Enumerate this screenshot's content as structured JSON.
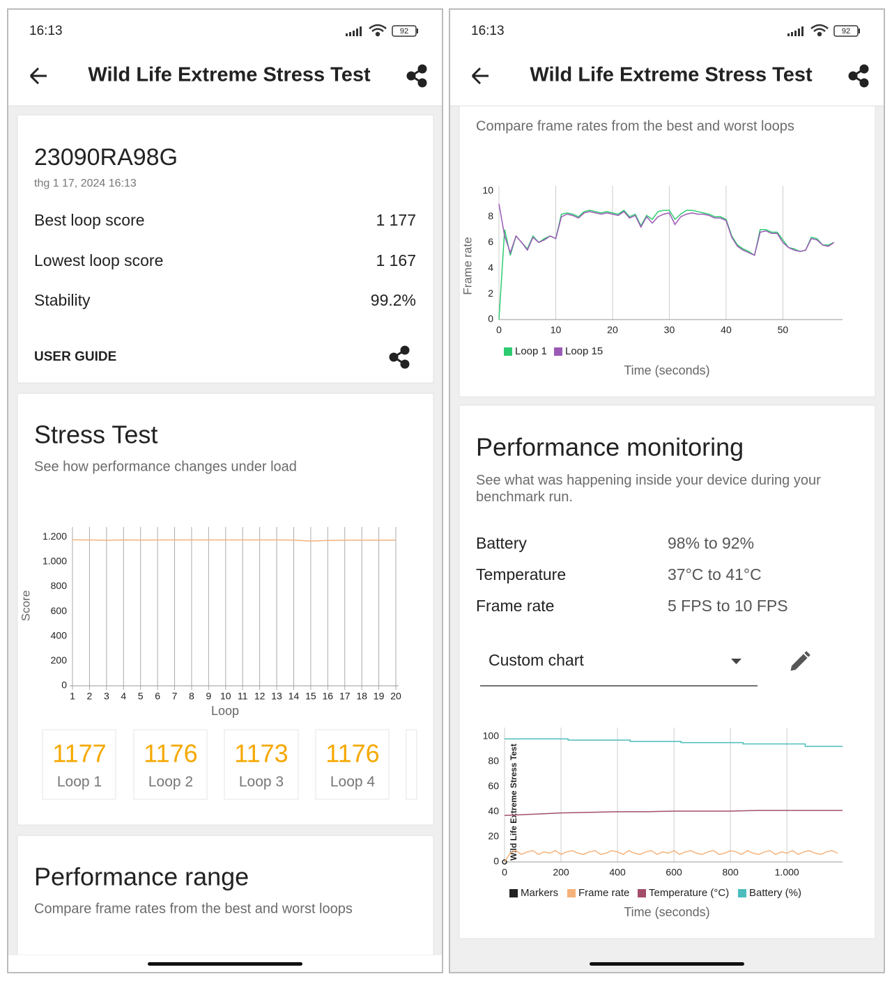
{
  "left": {
    "status": {
      "time": "16:13",
      "battery": "92"
    },
    "header": {
      "title": "Wild Life Extreme Stress Test"
    },
    "summary": {
      "device": "23090RA98G",
      "date": "thg 1 17, 2024 16:13",
      "rows": [
        {
          "label": "Best loop score",
          "value": "1 177"
        },
        {
          "label": "Lowest loop score",
          "value": "1 167"
        },
        {
          "label": "Stability",
          "value": "99.2%"
        }
      ],
      "link": "USER GUIDE"
    },
    "stress": {
      "title": "Stress Test",
      "subtitle": "See how performance changes under load",
      "chart_data": {
        "type": "line",
        "ylabel": "Score",
        "xlabel": "Loop",
        "categories": [
          "1",
          "2",
          "3",
          "4",
          "5",
          "6",
          "7",
          "8",
          "9",
          "10",
          "11",
          "12",
          "13",
          "14",
          "15",
          "16",
          "17",
          "18",
          "19",
          "20"
        ],
        "series": [
          {
            "color": "#f2b27c",
            "values": [
              1177,
              1176,
              1173,
              1176,
              1175,
              1176,
              1176,
              1176,
              1176,
              1176,
              1176,
              1176,
              1176,
              1175,
              1167,
              1172,
              1174,
              1174,
              1174,
              1174
            ]
          }
        ],
        "ylim": [
          0,
          1280
        ],
        "yticks": [
          0,
          200,
          400,
          600,
          800,
          {
            "value": 1000,
            "label": "1.000"
          },
          {
            "value": 1200,
            "label": "1.200"
          }
        ]
      },
      "loops": [
        {
          "score": "1177",
          "label": "Loop 1"
        },
        {
          "score": "1176",
          "label": "Loop 2"
        },
        {
          "score": "1173",
          "label": "Loop 3"
        },
        {
          "score": "1176",
          "label": "Loop 4"
        }
      ]
    },
    "range": {
      "title": "Performance range",
      "subtitle": "Compare frame rates from the best and worst loops"
    }
  },
  "right": {
    "status": {
      "time": "16:13",
      "battery": "92"
    },
    "header": {
      "title": "Wild Life Extreme Stress Test"
    },
    "range": {
      "subtitle": "Compare frame rates from the best and worst loops",
      "chart_data": {
        "type": "line",
        "ylabel": "Frame rate",
        "xlabel": "Time (seconds)",
        "x": [
          0,
          1,
          2,
          3,
          4,
          5,
          6,
          7,
          8,
          9,
          10,
          11,
          12,
          13,
          14,
          15,
          16,
          17,
          18,
          19,
          20,
          21,
          22,
          23,
          24,
          25,
          26,
          27,
          28,
          29,
          30,
          31,
          32,
          33,
          34,
          35,
          36,
          37,
          38,
          39,
          40,
          41,
          42,
          43,
          44,
          45,
          46,
          47,
          48,
          49,
          50,
          51,
          52,
          53,
          54,
          55,
          56,
          57,
          58,
          59
        ],
        "series": [
          {
            "name": "Loop 1",
            "color": "#2ecc71",
            "values": [
              0,
              7,
              5,
              6.5,
              6,
              5.5,
              6.5,
              6,
              6.3,
              6.5,
              6.3,
              8.2,
              8.3,
              8.2,
              8,
              8.4,
              8.5,
              8.4,
              8.3,
              8.4,
              8.3,
              8.2,
              8.5,
              8,
              8.2,
              7.3,
              8.1,
              7.8,
              8.4,
              8.5,
              8.5,
              7.8,
              8.2,
              8.5,
              8.5,
              8.4,
              8.3,
              8.2,
              8,
              8,
              7.8,
              6.5,
              5.8,
              5.5,
              5.3,
              5,
              7,
              7,
              6.8,
              6.8,
              6.2,
              5.6,
              5.5,
              5.3,
              5.4,
              6.4,
              6.3,
              5.8,
              5.8,
              6
            ]
          },
          {
            "name": "Loop 15",
            "color": "#9b59b6",
            "values": [
              9,
              6.5,
              5.2,
              6.5,
              6,
              5.4,
              6.4,
              6,
              6.2,
              6.5,
              6.3,
              8,
              8.2,
              8.1,
              7.9,
              8.3,
              8.4,
              8.3,
              8.2,
              8.3,
              8.2,
              8.1,
              8.4,
              7.9,
              8.1,
              7.2,
              8,
              7.5,
              8,
              8.2,
              8.3,
              7.4,
              8,
              8.2,
              8.3,
              8.2,
              8.2,
              8.1,
              7.9,
              7.9,
              7.7,
              6.4,
              5.7,
              5.4,
              5.2,
              5,
              6.8,
              6.9,
              6.7,
              6.7,
              6,
              5.6,
              5.4,
              5.3,
              5.4,
              6.3,
              6.2,
              5.8,
              5.7,
              6
            ]
          }
        ],
        "xlim": [
          0,
          60.5
        ],
        "xticks": [
          0,
          10,
          20,
          30,
          40,
          50
        ],
        "ylim": [
          0,
          10.4
        ],
        "yticks": [
          0,
          2,
          4,
          6,
          8,
          10
        ]
      }
    },
    "monitoring": {
      "title": "Performance monitoring",
      "subtitle": "See what was happening inside your device during your benchmark run.",
      "rows": [
        {
          "label": "Battery",
          "value": "98% to 92%"
        },
        {
          "label": "Temperature",
          "value": "37°C to 41°C"
        },
        {
          "label": "Frame rate",
          "value": "5 FPS to 10 FPS"
        }
      ],
      "dropdown": "Custom chart",
      "chart_data": {
        "type": "line",
        "xlabel": "Time (seconds)",
        "series": [
          {
            "name": "Markers",
            "color": "#222222",
            "x": [
              0
            ],
            "values": [
              0
            ],
            "label": "Wild Life Extreme Stress Test"
          },
          {
            "name": "Frame rate",
            "color": "#f5b27a",
            "x": [
              0,
              20,
              40,
              60,
              80,
              100,
              120,
              140,
              160,
              180,
              200,
              220,
              240,
              260,
              280,
              300,
              320,
              340,
              360,
              380,
              400,
              420,
              440,
              460,
              480,
              500,
              520,
              540,
              560,
              580,
              600,
              620,
              640,
              660,
              680,
              700,
              720,
              740,
              760,
              780,
              800,
              820,
              840,
              860,
              880,
              900,
              920,
              940,
              960,
              980,
              1000,
              1020,
              1040,
              1060,
              1080,
              1100,
              1120,
              1140,
              1160,
              1180
            ],
            "values": [
              0,
              7,
              9,
              6,
              8,
              9,
              6,
              8,
              7,
              9,
              6,
              8,
              9,
              7,
              6,
              8,
              9,
              6,
              7,
              9,
              8,
              6,
              9,
              7,
              6,
              8,
              9,
              6,
              8,
              7,
              9,
              6,
              8,
              9,
              7,
              6,
              8,
              9,
              6,
              7,
              9,
              8,
              6,
              9,
              7,
              6,
              8,
              9,
              6,
              8,
              7,
              9,
              6,
              8,
              9,
              7,
              6,
              8,
              9,
              7
            ]
          },
          {
            "name": "Temperature (°C)",
            "color": "#a34e6a",
            "x": [
              0,
              50,
              100,
              200,
              300,
              400,
              500,
              600,
              700,
              800,
              900,
              1000,
              1100,
              1197
            ],
            "values": [
              37,
              37.5,
              38,
              39,
              39.5,
              40,
              40,
              40.5,
              40.5,
              40.5,
              41,
              41,
              41,
              41
            ]
          },
          {
            "name": "Battery (%)",
            "color": "#4cbcbc",
            "x": [
              0,
              225,
              225,
              445,
              445,
              625,
              625,
              845,
              845,
              1065,
              1065,
              1197
            ],
            "values": [
              98,
              98,
              97,
              97,
              96,
              96,
              95,
              95,
              94,
              94,
              92,
              92
            ]
          }
        ],
        "xlim": [
          0,
          1197
        ],
        "xticks": [
          0,
          200,
          400,
          600,
          800,
          {
            "value": 1000,
            "label": "1.000"
          }
        ],
        "ylim": [
          0,
          107
        ],
        "yticks": [
          0,
          20,
          40,
          60,
          80,
          100
        ]
      }
    }
  }
}
